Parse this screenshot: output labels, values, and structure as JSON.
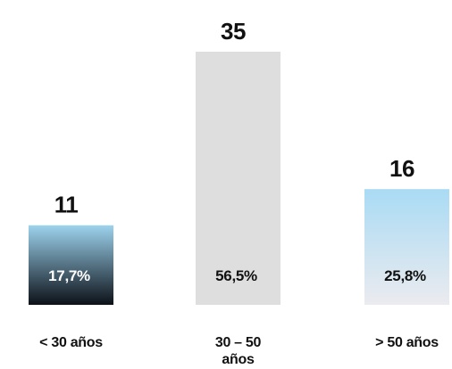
{
  "chart_data": {
    "type": "bar",
    "title": "",
    "xlabel": "",
    "ylabel": "",
    "ylim": [
      0,
      35
    ],
    "grid": false,
    "legend": "none",
    "categories": [
      [
        "< 30 años"
      ],
      [
        "30 – 50",
        "años"
      ],
      [
        "> 50 años"
      ]
    ],
    "values": [
      11,
      35,
      16
    ],
    "value_labels": [
      "11",
      "35",
      "16"
    ],
    "percentages": [
      "17,7%",
      "56,5%",
      "25,8%"
    ],
    "colors": [
      {
        "top": "#9dd3ee",
        "bottom": "#0c1118",
        "text": "#ffffff"
      },
      {
        "top": "#dedede",
        "bottom": "#dedede",
        "text": "#111111"
      },
      {
        "top": "#a9dbf4",
        "bottom": "#ebebef",
        "text": "#111111"
      }
    ]
  }
}
